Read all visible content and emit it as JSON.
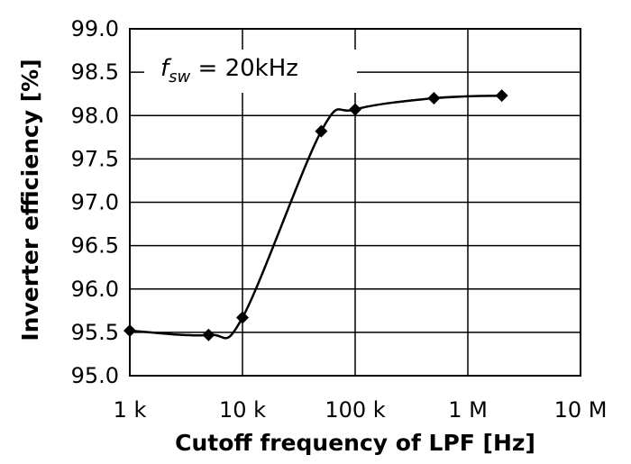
{
  "chart_data": {
    "type": "scatter",
    "title": "",
    "xlabel": "Cutoff frequency of LPF [Hz]",
    "ylabel": "Inverter efficiency [%]",
    "x_scale": "log",
    "xlim": [
      1000,
      10000000
    ],
    "ylim": [
      95.0,
      99.0
    ],
    "x_tick_values": [
      1000,
      10000,
      100000,
      1000000,
      10000000
    ],
    "x_tick_labels": [
      "1 k",
      "10 k",
      "100 k",
      "1 M",
      "10 M"
    ],
    "y_tick_values": [
      95.0,
      95.5,
      96.0,
      96.5,
      97.0,
      97.5,
      98.0,
      98.5,
      99.0
    ],
    "y_tick_labels": [
      "95.0",
      "95.5",
      "96.0",
      "96.5",
      "97.0",
      "97.5",
      "98.0",
      "98.5",
      "99.0"
    ],
    "grid": true,
    "series": [
      {
        "marker": "diamond",
        "smooth_line": true,
        "color": "#000000",
        "x": [
          1000,
          5000,
          10000,
          50000,
          100000,
          500000,
          2000000
        ],
        "y": [
          95.52,
          95.47,
          95.67,
          97.82,
          98.07,
          98.2,
          98.23
        ]
      }
    ],
    "annotation": {
      "f": "f",
      "sub": "sw",
      "rest": " = 20kHz"
    }
  }
}
